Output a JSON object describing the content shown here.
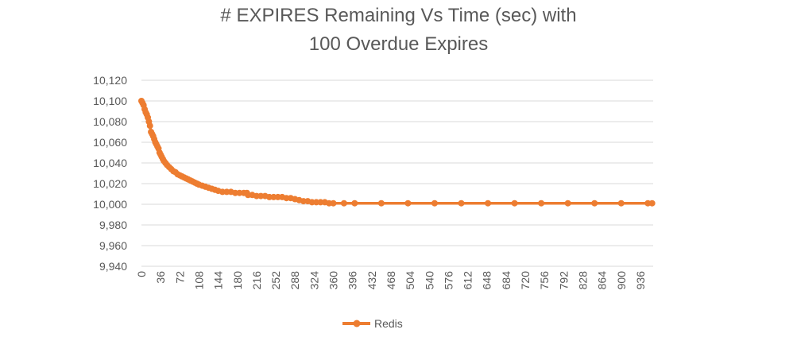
{
  "chart_data": {
    "type": "line",
    "title": "# EXPIRES Remaining Vs Time (sec) with",
    "subtitle": "100 Overdue Expires",
    "xlabel": "",
    "ylabel": "",
    "x_tick_labels": [
      "0",
      "36",
      "72",
      "108",
      "144",
      "180",
      "216",
      "252",
      "288",
      "324",
      "360",
      "396",
      "432",
      "468",
      "504",
      "540",
      "576",
      "612",
      "648",
      "684",
      "720",
      "756",
      "792",
      "828",
      "864",
      "900",
      "936"
    ],
    "y_tick_labels": [
      "9,940",
      "9,960",
      "9,980",
      "10,000",
      "10,020",
      "10,040",
      "10,060",
      "10,080",
      "10,100",
      "10,120"
    ],
    "xlim": [
      0,
      960
    ],
    "ylim": [
      9940,
      10120
    ],
    "grid": "horizontal",
    "legend_position": "bottom",
    "colors": {
      "series": "#ed7d31",
      "grid": "#d9d9d9",
      "text": "#595959"
    },
    "series": [
      {
        "name": "Redis",
        "points": [
          [
            0,
            10100
          ],
          [
            2,
            10098
          ],
          [
            4,
            10096
          ],
          [
            6,
            10092
          ],
          [
            8,
            10089
          ],
          [
            10,
            10087
          ],
          [
            12,
            10084
          ],
          [
            14,
            10080
          ],
          [
            16,
            10076
          ],
          [
            18,
            10070
          ],
          [
            20,
            10068
          ],
          [
            22,
            10066
          ],
          [
            24,
            10063
          ],
          [
            26,
            10060
          ],
          [
            28,
            10058
          ],
          [
            30,
            10056
          ],
          [
            32,
            10054
          ],
          [
            34,
            10050
          ],
          [
            36,
            10048
          ],
          [
            38,
            10046
          ],
          [
            40,
            10044
          ],
          [
            42,
            10042
          ],
          [
            45,
            10040
          ],
          [
            48,
            10038
          ],
          [
            52,
            10036
          ],
          [
            56,
            10034
          ],
          [
            60,
            10032
          ],
          [
            64,
            10031
          ],
          [
            68,
            10029
          ],
          [
            72,
            10028
          ],
          [
            76,
            10027
          ],
          [
            80,
            10026
          ],
          [
            84,
            10025
          ],
          [
            88,
            10024
          ],
          [
            92,
            10023
          ],
          [
            96,
            10022
          ],
          [
            100,
            10021
          ],
          [
            104,
            10020
          ],
          [
            108,
            10019
          ],
          [
            114,
            10018
          ],
          [
            120,
            10017
          ],
          [
            126,
            10016
          ],
          [
            132,
            10015
          ],
          [
            138,
            10014
          ],
          [
            144,
            10013
          ],
          [
            152,
            10012
          ],
          [
            160,
            10012
          ],
          [
            168,
            10012
          ],
          [
            176,
            10011
          ],
          [
            184,
            10011
          ],
          [
            192,
            10011
          ],
          [
            198,
            10011
          ],
          [
            200,
            10009
          ],
          [
            208,
            10009
          ],
          [
            216,
            10008
          ],
          [
            224,
            10008
          ],
          [
            232,
            10008
          ],
          [
            240,
            10007
          ],
          [
            248,
            10007
          ],
          [
            256,
            10007
          ],
          [
            264,
            10007
          ],
          [
            272,
            10006
          ],
          [
            280,
            10006
          ],
          [
            288,
            10005
          ],
          [
            296,
            10004
          ],
          [
            304,
            10003
          ],
          [
            312,
            10003
          ],
          [
            320,
            10002
          ],
          [
            328,
            10002
          ],
          [
            336,
            10002
          ],
          [
            344,
            10002
          ],
          [
            352,
            10001
          ],
          [
            360,
            10001
          ],
          [
            380,
            10001
          ],
          [
            400,
            10001
          ],
          [
            450,
            10001
          ],
          [
            500,
            10001
          ],
          [
            550,
            10001
          ],
          [
            600,
            10001
          ],
          [
            650,
            10001
          ],
          [
            700,
            10001
          ],
          [
            750,
            10001
          ],
          [
            800,
            10001
          ],
          [
            850,
            10001
          ],
          [
            900,
            10001
          ],
          [
            950,
            10001
          ],
          [
            958,
            10001
          ]
        ]
      }
    ]
  }
}
